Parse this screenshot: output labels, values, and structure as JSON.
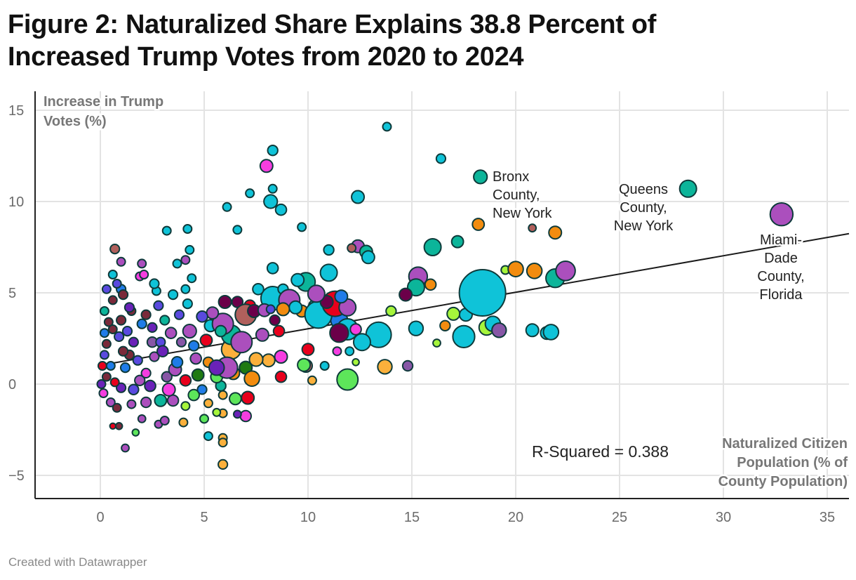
{
  "title_line1": "Figure 2: Naturalized Share Explains 38.8 Percent of",
  "title_line2": "Increased Trump Votes from 2020 to 2024",
  "footer": "Created with Datawrapper",
  "chart_data": {
    "type": "scatter",
    "title": "Figure 2: Naturalized Share Explains 38.8 Percent of Increased Trump Votes from 2020 to 2024",
    "ylabel_lines": [
      "Increase in Trump",
      "Votes (%)"
    ],
    "xlabel_lines": [
      "Naturalized Citizen",
      "Population (% of",
      "County Population)"
    ],
    "xlim": [
      -3.1,
      36
    ],
    "ylim": [
      -6.2,
      16
    ],
    "x_ticks": [
      0,
      5,
      10,
      15,
      20,
      25,
      30,
      35
    ],
    "x_tick_labels": [
      "0",
      "5",
      "10",
      "15",
      "20",
      "25",
      "30",
      "35"
    ],
    "y_ticks": [
      15,
      10,
      5,
      0,
      -5
    ],
    "y_tick_labels": [
      "15",
      "10",
      "5",
      "0",
      "−5"
    ],
    "grid": true,
    "regression": {
      "intercept": 1.03,
      "slope": 0.2,
      "label": "R-Squared = 0.388"
    },
    "palette": [
      "#0fc3d8",
      "#0cb59a",
      "#f28c0f",
      "#ab4fbd",
      "#6b0049",
      "#e8001c",
      "#a6f53b",
      "#1f7ce8",
      "#6a22b8",
      "#f53de0",
      "#5de65a",
      "#fbb03b",
      "#7a2a3a",
      "#5a4adf",
      "#b0605c",
      "#1e7a12",
      "#8757a6"
    ],
    "point_fields": [
      "x",
      "y",
      "relative_size",
      "color_index"
    ],
    "points": [
      [
        0.1,
        1.0,
        1,
        5
      ],
      [
        0.05,
        0.0,
        1,
        8
      ],
      [
        0.15,
        -0.5,
        1,
        9
      ],
      [
        0.5,
        -1.0,
        1,
        3
      ],
      [
        0.8,
        -1.3,
        1,
        12
      ],
      [
        1.5,
        -1.1,
        1,
        3
      ],
      [
        2.0,
        -1.9,
        0.9,
        3
      ],
      [
        1.9,
        0.2,
        1.2,
        3
      ],
      [
        2.4,
        -0.1,
        1.3,
        8
      ],
      [
        3.5,
        -0.9,
        1.3,
        3
      ],
      [
        4.5,
        -0.6,
        1.3,
        10
      ],
      [
        4.9,
        -0.3,
        1.1,
        7
      ],
      [
        5.8,
        -0.1,
        1.2,
        1
      ],
      [
        2.7,
        5.1,
        1,
        0
      ],
      [
        3.7,
        6.6,
        1,
        0
      ],
      [
        4.1,
        6.8,
        1,
        3
      ],
      [
        4.1,
        5.2,
        1,
        0
      ],
      [
        4.4,
        5.8,
        1,
        0
      ],
      [
        1.0,
        5.2,
        1.1,
        7
      ],
      [
        1.5,
        4.0,
        1,
        12
      ],
      [
        0.9,
        2.6,
        1.1,
        13
      ],
      [
        1.4,
        1.6,
        1.1,
        12
      ],
      [
        2.5,
        2.3,
        1.2,
        16
      ],
      [
        2.0,
        3.3,
        1.1,
        7
      ],
      [
        0.6,
        3.0,
        1,
        12
      ],
      [
        1.2,
        0.9,
        1.1,
        7
      ],
      [
        3.2,
        0.4,
        1.2,
        16
      ],
      [
        4.6,
        1.4,
        1.3,
        3
      ],
      [
        5.3,
        3.2,
        1.4,
        0
      ],
      [
        6.9,
        3.6,
        1.5,
        3
      ],
      [
        6.4,
        0.6,
        1.5,
        2
      ],
      [
        7.0,
        0.9,
        1.5,
        15
      ],
      [
        7.8,
        2.7,
        1.5,
        3
      ],
      [
        8.1,
        1.3,
        1.5,
        11
      ],
      [
        8.6,
        2.9,
        1.3,
        5
      ],
      [
        9.7,
        4.0,
        1.4,
        2
      ],
      [
        10.3,
        4.3,
        1.3,
        1
      ],
      [
        6.2,
        2.2,
        1.3,
        1
      ],
      [
        6.3,
        1.9,
        2.3,
        11
      ],
      [
        6.3,
        2.7,
        2.3,
        1
      ],
      [
        5.9,
        3.3,
        2.5,
        3
      ],
      [
        6.8,
        2.3,
        2.5,
        3
      ],
      [
        6.0,
        4.5,
        1.5,
        4
      ],
      [
        6.6,
        4.5,
        1.3,
        4
      ],
      [
        5.4,
        3.9,
        1.4,
        3
      ],
      [
        4.9,
        3.7,
        1.3,
        13
      ],
      [
        4.3,
        2.9,
        1.6,
        3
      ],
      [
        5.8,
        2.9,
        1.3,
        1
      ],
      [
        4.5,
        2.1,
        1.2,
        7
      ],
      [
        5.1,
        2.4,
        1.4,
        5
      ],
      [
        5.2,
        1.2,
        1.2,
        2
      ],
      [
        4.7,
        0.5,
        1.4,
        15
      ],
      [
        5.6,
        0.4,
        1.4,
        10
      ],
      [
        5.9,
        -0.6,
        1,
        11
      ],
      [
        4.1,
        0.2,
        1.3,
        5
      ],
      [
        3.6,
        0.8,
        1.5,
        3
      ],
      [
        3.3,
        -0.3,
        1.5,
        9
      ],
      [
        2.9,
        -0.9,
        1.4,
        1
      ],
      [
        2.2,
        -1.0,
        1.2,
        3
      ],
      [
        1.6,
        -0.3,
        1.2,
        13
      ],
      [
        1.0,
        -0.2,
        1.1,
        8
      ],
      [
        0.7,
        0.1,
        1,
        5
      ],
      [
        0.3,
        0.4,
        1,
        12
      ],
      [
        0.5,
        1.0,
        1,
        7
      ],
      [
        0.2,
        1.6,
        1,
        13
      ],
      [
        0.3,
        2.2,
        1,
        12
      ],
      [
        0.2,
        2.8,
        1,
        7
      ],
      [
        0.4,
        3.4,
        1,
        12
      ],
      [
        0.2,
        4.0,
        1,
        1
      ],
      [
        0.6,
        4.6,
        1,
        12
      ],
      [
        0.3,
        5.2,
        1,
        13
      ],
      [
        0.6,
        6.0,
        1,
        0
      ],
      [
        0.8,
        5.5,
        1,
        13
      ],
      [
        1.1,
        4.9,
        1.1,
        12
      ],
      [
        1.4,
        4.2,
        1.1,
        8
      ],
      [
        1.0,
        3.5,
        1.1,
        12
      ],
      [
        1.3,
        2.9,
        1.1,
        13
      ],
      [
        1.6,
        2.3,
        1.1,
        8
      ],
      [
        1.1,
        1.8,
        1.1,
        12
      ],
      [
        1.8,
        1.3,
        1.1,
        13
      ],
      [
        2.2,
        0.6,
        1.1,
        9
      ],
      [
        2.6,
        1.5,
        1.1,
        3
      ],
      [
        2.9,
        2.3,
        1.1,
        13
      ],
      [
        2.5,
        3.1,
        1.1,
        8
      ],
      [
        2.2,
        3.8,
        1.1,
        12
      ],
      [
        2.8,
        4.3,
        1.1,
        13
      ],
      [
        3.1,
        3.5,
        1.1,
        1
      ],
      [
        3.4,
        2.8,
        1.3,
        3
      ],
      [
        3.0,
        1.8,
        1.3,
        8
      ],
      [
        3.7,
        1.2,
        1.3,
        7
      ],
      [
        3.9,
        2.3,
        1.1,
        16
      ],
      [
        3.8,
        3.8,
        1.1,
        13
      ],
      [
        4.2,
        4.4,
        1.1,
        0
      ],
      [
        3.5,
        4.9,
        1.1,
        0
      ],
      [
        2.6,
        5.5,
        1.1,
        0
      ],
      [
        1.9,
        5.9,
        1,
        9
      ],
      [
        1.0,
        6.7,
        1,
        3
      ],
      [
        2.0,
        6.6,
        1,
        3
      ],
      [
        2.1,
        6.0,
        1,
        9
      ],
      [
        13.8,
        14.1,
        1,
        0
      ],
      [
        16.4,
        12.35,
        1.1,
        0
      ],
      [
        8.3,
        12.8,
        1.2,
        0
      ],
      [
        8.0,
        11.95,
        1.5,
        9
      ],
      [
        12.4,
        10.25,
        1.5,
        0
      ],
      [
        8.2,
        10.0,
        1.6,
        0
      ],
      [
        8.7,
        9.55,
        1.3,
        0
      ],
      [
        6.1,
        9.7,
        1,
        0
      ],
      [
        7.2,
        10.45,
        1,
        0
      ],
      [
        8.3,
        10.7,
        1,
        0
      ],
      [
        18.2,
        8.75,
        1.4,
        2
      ],
      [
        20.8,
        8.55,
        0.9,
        14
      ],
      [
        21.9,
        8.3,
        1.5,
        2
      ],
      [
        9.7,
        8.6,
        1,
        0
      ],
      [
        6.6,
        8.45,
        1,
        0
      ],
      [
        3.2,
        8.4,
        1,
        0
      ],
      [
        4.2,
        8.5,
        1,
        0
      ],
      [
        16.0,
        7.5,
        2,
        1
      ],
      [
        17.2,
        7.8,
        1.4,
        1
      ],
      [
        12.4,
        7.55,
        1.5,
        3
      ],
      [
        12.1,
        7.45,
        1,
        14
      ],
      [
        12.8,
        7.25,
        1.5,
        1
      ],
      [
        11.0,
        7.35,
        1.2,
        0
      ],
      [
        12.9,
        6.95,
        1.5,
        0
      ],
      [
        4.3,
        7.35,
        1,
        0
      ],
      [
        0.7,
        7.4,
        1.1,
        14
      ],
      [
        15.3,
        5.9,
        2.2,
        3
      ],
      [
        15.2,
        5.3,
        2,
        1
      ],
      [
        14.7,
        4.9,
        1.5,
        4
      ],
      [
        15.9,
        5.45,
        1.3,
        2
      ],
      [
        19.5,
        6.25,
        1,
        6
      ],
      [
        20.0,
        6.3,
        1.8,
        2
      ],
      [
        20.9,
        6.2,
        1.8,
        2
      ],
      [
        21.9,
        5.8,
        2.2,
        1
      ],
      [
        22.4,
        6.2,
        2.3,
        3
      ],
      [
        17.0,
        3.85,
        1.5,
        6
      ],
      [
        17.6,
        3.8,
        1.5,
        0
      ],
      [
        16.6,
        3.2,
        1.2,
        2
      ],
      [
        16.2,
        2.25,
        0.9,
        6
      ],
      [
        17.5,
        2.6,
        2.6,
        0
      ],
      [
        18.6,
        3.1,
        1.8,
        6
      ],
      [
        18.9,
        3.3,
        1.8,
        0
      ],
      [
        19.2,
        2.95,
        1.7,
        16
      ],
      [
        20.8,
        2.95,
        1.5,
        0
      ],
      [
        21.5,
        2.8,
        1.5,
        0
      ],
      [
        21.7,
        2.85,
        1.8,
        0
      ],
      [
        15.2,
        3.05,
        1.7,
        0
      ],
      [
        14.0,
        4.0,
        1.2,
        6
      ],
      [
        14.8,
        1.0,
        1.2,
        16
      ],
      [
        13.7,
        0.95,
        1.7,
        11
      ],
      [
        11.9,
        0.25,
        2.5,
        10
      ],
      [
        12.3,
        1.2,
        0.8,
        6
      ],
      [
        10.2,
        0.2,
        1,
        11
      ],
      [
        13.4,
        2.7,
        3,
        0
      ],
      [
        12.6,
        2.3,
        2,
        0
      ],
      [
        11.5,
        3.5,
        2,
        7
      ],
      [
        11.9,
        3.0,
        2.5,
        0
      ],
      [
        10.5,
        3.8,
        3.2,
        0
      ],
      [
        11.3,
        4.4,
        3,
        5
      ],
      [
        11.5,
        2.8,
        2.2,
        4
      ],
      [
        11.9,
        4.2,
        2,
        3
      ],
      [
        11.0,
        6.1,
        2,
        0
      ],
      [
        11.6,
        4.8,
        1.5,
        7
      ],
      [
        10.9,
        4.5,
        1.5,
        4
      ],
      [
        12.3,
        3.0,
        1.3,
        9
      ],
      [
        12.0,
        1.8,
        1,
        0
      ],
      [
        11.4,
        1.8,
        1,
        9
      ],
      [
        10.0,
        1.9,
        1.4,
        5
      ],
      [
        9.9,
        5.6,
        2.2,
        1
      ],
      [
        10.4,
        4.95,
        2,
        3
      ],
      [
        9.5,
        5.7,
        1.5,
        0
      ],
      [
        8.3,
        4.7,
        2.8,
        0
      ],
      [
        7.6,
        5.2,
        1.3,
        0
      ],
      [
        8.8,
        5.2,
        1.2,
        0
      ],
      [
        8.3,
        6.35,
        1.3,
        0
      ],
      [
        7.2,
        4.3,
        1.3,
        5
      ],
      [
        7.0,
        3.8,
        2.5,
        14
      ],
      [
        9.1,
        4.6,
        2.5,
        3
      ],
      [
        9.4,
        4.2,
        1.5,
        0
      ],
      [
        8.8,
        4.1,
        1.5,
        2
      ],
      [
        7.4,
        4.0,
        1.5,
        4
      ],
      [
        7.9,
        4.05,
        1.5,
        3
      ],
      [
        8.2,
        4.1,
        1,
        13
      ],
      [
        8.4,
        3.5,
        1.2,
        4
      ],
      [
        9.9,
        1.0,
        1.5,
        14
      ],
      [
        9.8,
        1.05,
        1.5,
        10
      ],
      [
        10.8,
        1.0,
        1,
        0
      ],
      [
        8.7,
        1.5,
        1.5,
        9
      ],
      [
        8.7,
        0.4,
        1.3,
        5
      ],
      [
        7.1,
        -0.75,
        1.5,
        5
      ],
      [
        7.5,
        1.35,
        1.6,
        11
      ],
      [
        7.3,
        0.3,
        1.8,
        2
      ],
      [
        6.1,
        0.9,
        2.5,
        3
      ],
      [
        5.6,
        0.9,
        1.8,
        8
      ],
      [
        6.5,
        -0.8,
        1.4,
        10
      ],
      [
        5.2,
        -1.05,
        1,
        11
      ],
      [
        5.9,
        -1.6,
        1,
        11
      ],
      [
        5.6,
        -1.55,
        0.9,
        6
      ],
      [
        5.0,
        -1.9,
        1,
        10
      ],
      [
        7.0,
        -1.75,
        1.3,
        9
      ],
      [
        6.6,
        -1.65,
        0.9,
        8
      ],
      [
        5.9,
        -2.95,
        1,
        11
      ],
      [
        5.9,
        -3.2,
        1,
        11
      ],
      [
        5.9,
        -4.4,
        1.1,
        11
      ],
      [
        5.2,
        -2.85,
        1,
        0
      ],
      [
        4.0,
        -2.1,
        1,
        11
      ],
      [
        1.2,
        -3.5,
        0.9,
        3
      ],
      [
        0.9,
        -2.3,
        0.8,
        12
      ],
      [
        0.6,
        -2.3,
        0.7,
        5
      ],
      [
        1.7,
        -2.65,
        0.8,
        10
      ],
      [
        2.8,
        -2.2,
        0.9,
        3
      ],
      [
        3.1,
        -2.0,
        1,
        3
      ],
      [
        4.1,
        -1.2,
        1,
        6
      ],
      [
        18.4,
        5.0,
        5.5,
        0
      ],
      [
        18.3,
        11.35,
        1.6,
        1
      ],
      [
        28.3,
        10.7,
        2,
        1
      ],
      [
        32.8,
        9.3,
        2.7,
        3
      ]
    ],
    "annotations": [
      {
        "lines": [
          "Bronx",
          "County,",
          "New York"
        ],
        "x": 18.3,
        "y": 11.35,
        "align": "start"
      },
      {
        "lines": [
          "Queens",
          "County,",
          "New York"
        ],
        "x": 28.3,
        "y": 10.7,
        "align": "middle"
      },
      {
        "lines": [
          "Miami-",
          "Dade",
          "County,",
          "Florida"
        ],
        "x": 32.8,
        "y": 9.3,
        "align": "middle"
      }
    ]
  }
}
